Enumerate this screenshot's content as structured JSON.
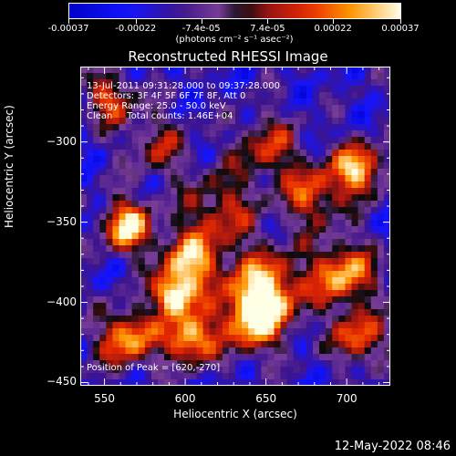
{
  "colorbar": {
    "ticks": [
      "-0.00037",
      "-0.00022",
      "-7.4e-05",
      "7.4e-05",
      "0.00022",
      "0.00037"
    ],
    "tick_values": [
      -0.00037,
      -0.00022,
      -7.4e-05,
      7.4e-05,
      0.00022,
      0.00037
    ],
    "unit": "(photons cm⁻² s⁻¹ asec⁻²)"
  },
  "chart_data": {
    "type": "heatmap",
    "title": "Reconstructed RHESSI Image",
    "xlabel": "Heliocentric X (arcsec)",
    "ylabel": "Heliocentric Y (arcsec)",
    "xlim": [
      535,
      727
    ],
    "ylim": [
      -452,
      -253
    ],
    "xticks": [
      550,
      600,
      650,
      700
    ],
    "yticks": [
      -300,
      -350,
      -400,
      -450
    ],
    "xtick_labels": [
      "550",
      "600",
      "650",
      "700"
    ],
    "ytick_labels": [
      "−300",
      "−350",
      "−400",
      "−450"
    ],
    "annotations": [
      "13-Jul-2011 09:31:28.000 to 09:37:28.000",
      "Detectors: 3F 4F 5F 6F 7F 8F, Att 0",
      "Energy Range: 25.0 - 50.0 keV",
      "Clean     Total counts: 1.46E+04"
    ],
    "peak_label": "Position of Peak = [620,-270]",
    "peak": [
      620,
      -270
    ],
    "colormap_range": [
      -0.00037,
      0.00037
    ]
  },
  "footer": {
    "timestamp": "12-May-2022 08:46"
  }
}
